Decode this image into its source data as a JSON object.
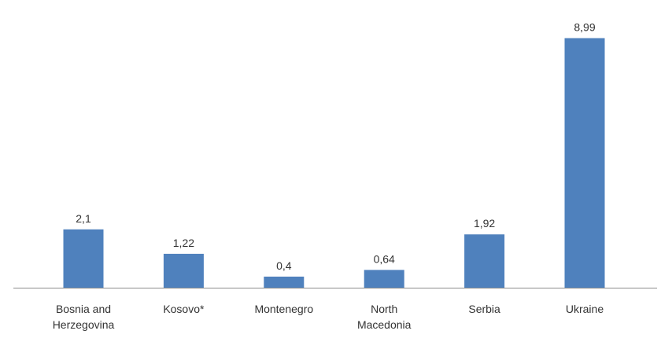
{
  "chart_data": {
    "type": "bar",
    "categories": [
      [
        "Bosnia and",
        "Herzegovina"
      ],
      [
        "Kosovo*"
      ],
      [
        "Montenegro"
      ],
      [
        "North",
        "Macedonia"
      ],
      [
        "Serbia"
      ],
      [
        "Ukraine"
      ]
    ],
    "values": [
      2.1,
      1.22,
      0.4,
      0.64,
      1.92,
      8.99
    ],
    "data_labels": [
      "2,1",
      "1,22",
      "0,4",
      "0,64",
      "1,92",
      "8,99"
    ],
    "title": "",
    "xlabel": "",
    "ylabel": "",
    "ylim": [
      0,
      9.4
    ],
    "grid": false,
    "legend": "none",
    "colors": {
      "bar": "#4f81bd",
      "axis": "#8c8c8c",
      "text": "#333333"
    }
  }
}
